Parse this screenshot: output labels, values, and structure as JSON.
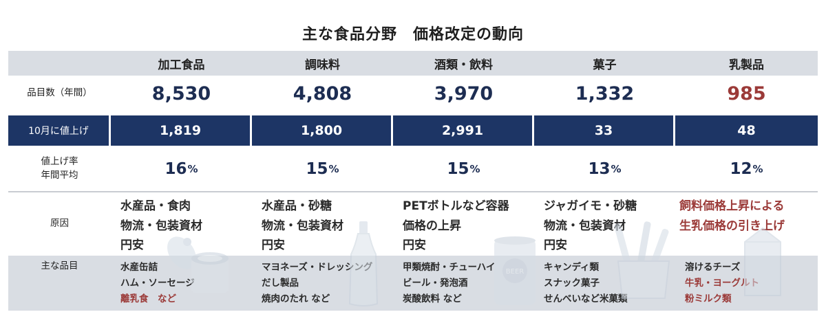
{
  "title": "主な食品分野　価格改定の動向",
  "categories": [
    "加工食品",
    "調味料",
    "酒類・飲料",
    "菓子",
    "乳製品"
  ],
  "rows": {
    "count": {
      "label": "品目数（年間）",
      "values": [
        "8,530",
        "4,808",
        "3,970",
        "1,332",
        "985"
      ]
    },
    "october": {
      "label": "10月に値上げ",
      "values": [
        "1,819",
        "1,800",
        "2,991",
        "33",
        "48"
      ]
    },
    "rate": {
      "label_line1": "値上げ率",
      "label_line2": "年間平均",
      "values": [
        "16",
        "15",
        "15",
        "13",
        "12"
      ],
      "unit": "%"
    },
    "cause": {
      "label": "原因",
      "values": [
        [
          "水産品・食肉",
          "物流・包装資材",
          "円安"
        ],
        [
          "水産品・砂糖",
          "物流・包装資材",
          "円安"
        ],
        [
          "PETボトルなど容器",
          "価格の上昇",
          "円安"
        ],
        [
          "ジャガイモ・砂糖",
          "物流・包装資材",
          "円安"
        ],
        [
          "飼料価格上昇による",
          "生乳価格の引き上げ"
        ]
      ]
    },
    "items": {
      "label": "主な品目",
      "values": [
        [
          "水産缶詰",
          "ハム・ソーセージ",
          "離乳食　など"
        ],
        [
          "マヨネーズ・ドレッシング",
          "だし製品",
          "焼肉のたれ など"
        ],
        [
          "甲類焼酎・チューハイ",
          "ビール・発泡酒",
          "炭酸飲料 など"
        ],
        [
          "キャンディ類",
          "スナック菓子",
          "せんべいなど米菓類"
        ],
        [
          "溶けるチーズ",
          "牛乳・ヨーグルト",
          "粉ミルク類"
        ]
      ]
    }
  },
  "illustrations": [
    "can-icon",
    "bottle-icon",
    "beer-can-icon",
    "snack-icon",
    "milk-carton-icon"
  ],
  "can_label": "BEER",
  "colors": {
    "navy": "#1d3565",
    "header_bg": "#d9dde3",
    "accent_red": "#9b3a38",
    "value_text": "#1d2d52"
  }
}
